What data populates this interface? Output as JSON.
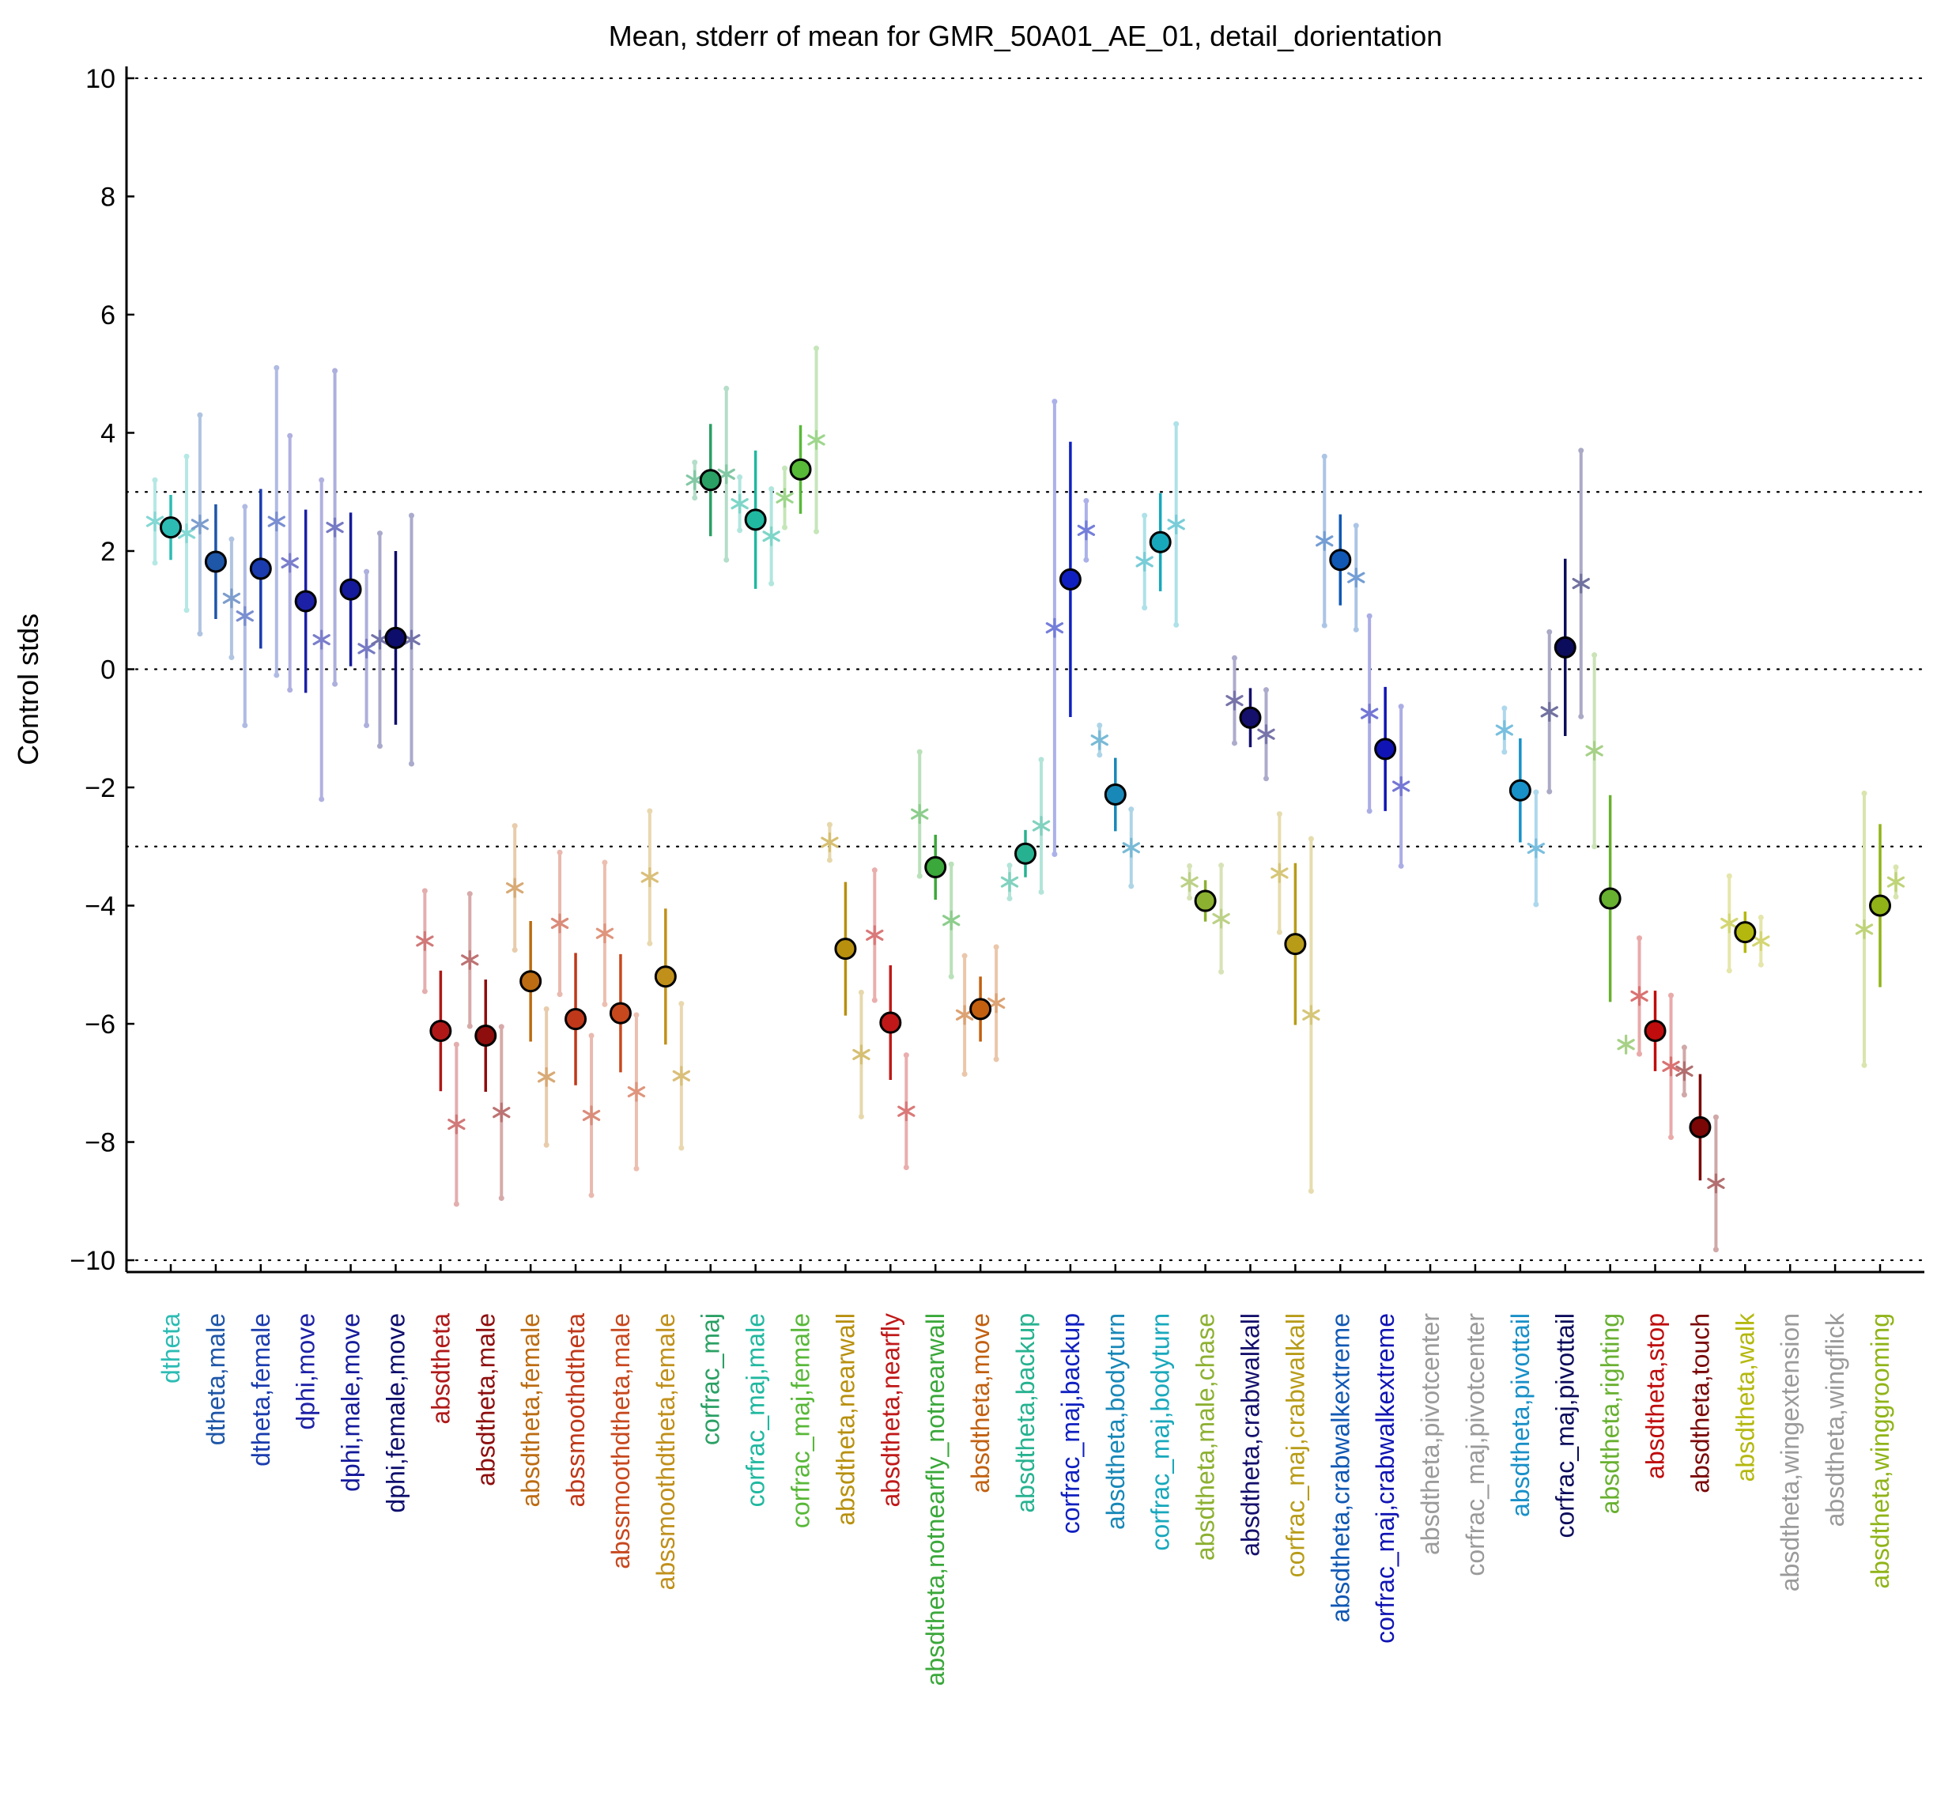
{
  "chart_data": {
    "type": "scatter",
    "title": "Mean, stderr of mean for GMR_50A01_AE_01, detail_dorientation",
    "xlabel": "",
    "ylabel": "Control stds",
    "ylim": [
      -10.2,
      10.2
    ],
    "yticks": [
      -10,
      -8,
      -6,
      -4,
      -2,
      0,
      2,
      4,
      6,
      8,
      10
    ],
    "ytick_labels": [
      "−10",
      "−8",
      "−6",
      "−4",
      "−2",
      "0",
      "2",
      "4",
      "6",
      "8",
      "10"
    ],
    "reference_lines": [
      10,
      3,
      0,
      -3,
      -10
    ],
    "grid": false,
    "legend": "none",
    "series_legend": [
      "mean (circle) with stderr bar",
      "male (asterisk, left)",
      "female (asterisk, right)"
    ],
    "categories": [
      {
        "label": "dtheta",
        "color": "#2cbcb4",
        "mean": 2.4,
        "se": 0.55,
        "male": 2.5,
        "male_se": 0.7,
        "female": 2.3,
        "female_se": 1.3
      },
      {
        "label": "dtheta,male",
        "color": "#1e56a8",
        "mean": 1.82,
        "se": 0.97,
        "male": 2.45,
        "male_se": 1.85,
        "female": 1.2,
        "female_se": 1.0
      },
      {
        "label": "dtheta,female",
        "color": "#1a3caf",
        "mean": 1.7,
        "se": 1.35,
        "male": 0.9,
        "male_se": 1.85,
        "female": 2.5,
        "female_se": 2.6
      },
      {
        "label": "dphi,move",
        "color": "#1c20a6",
        "mean": 1.15,
        "se": 1.55,
        "male": 1.8,
        "male_se": 2.15,
        "female": 0.5,
        "female_se": 2.7
      },
      {
        "label": "dphi,male,move",
        "color": "#141a9a",
        "mean": 1.35,
        "se": 1.3,
        "male": 2.4,
        "male_se": 2.65,
        "female": 0.35,
        "female_se": 1.3
      },
      {
        "label": "dphi,female,move",
        "color": "#0d0d6c",
        "mean": 0.53,
        "se": 1.47,
        "male": 0.5,
        "male_se": 1.8,
        "female": 0.5,
        "female_se": 2.1
      },
      {
        "label": "absdtheta",
        "color": "#b01818",
        "mean": -6.12,
        "se": 1.02,
        "male": -4.6,
        "male_se": 0.85,
        "female": -7.7,
        "female_se": 1.35
      },
      {
        "label": "absdtheta,male",
        "color": "#8e0d0d",
        "mean": -6.2,
        "se": 0.95,
        "male": -4.92,
        "male_se": 1.12,
        "female": -7.5,
        "female_se": 1.45
      },
      {
        "label": "absdtheta,female",
        "color": "#bc6c12",
        "mean": -5.28,
        "se": 1.02,
        "male": -3.7,
        "male_se": 1.05,
        "female": -6.9,
        "female_se": 1.15
      },
      {
        "label": "abssmoothdtheta",
        "color": "#c0381a",
        "mean": -5.92,
        "se": 1.12,
        "male": -4.3,
        "male_se": 1.2,
        "female": -7.55,
        "female_se": 1.35
      },
      {
        "label": "abssmoothdtheta,male",
        "color": "#c8481e",
        "mean": -5.82,
        "se": 1.0,
        "male": -4.47,
        "male_se": 1.2,
        "female": -7.15,
        "female_se": 1.3
      },
      {
        "label": "abssmoothdtheta,female",
        "color": "#c0901a",
        "mean": -5.2,
        "se": 1.15,
        "male": -3.52,
        "male_se": 1.12,
        "female": -6.88,
        "female_se": 1.22
      },
      {
        "label": "corfrac_maj",
        "color": "#2aa064",
        "mean": 3.2,
        "se": 0.95,
        "male": 3.2,
        "male_se": 0.3,
        "female": 3.3,
        "female_se": 1.45
      },
      {
        "label": "corfrac_maj,male",
        "color": "#20b8a0",
        "mean": 2.53,
        "se": 1.17,
        "male": 2.8,
        "male_se": 0.45,
        "female": 2.25,
        "female_se": 0.8
      },
      {
        "label": "corfrac_maj,female",
        "color": "#58b838",
        "mean": 3.38,
        "se": 0.75,
        "male": 2.9,
        "male_se": 0.5,
        "female": 3.88,
        "female_se": 1.55
      },
      {
        "label": "absdtheta,nearwall",
        "color": "#b8900e",
        "mean": -4.73,
        "se": 1.13,
        "male": -2.93,
        "male_se": 0.3,
        "female": -6.52,
        "female_se": 1.05
      },
      {
        "label": "absdtheta,nearfly",
        "color": "#c01818",
        "mean": -5.98,
        "se": 0.97,
        "male": -4.5,
        "male_se": 1.1,
        "female": -7.48,
        "female_se": 0.95
      },
      {
        "label": "absdtheta,notnearfly_notnearwall",
        "color": "#3aa83a",
        "mean": -3.35,
        "se": 0.55,
        "male": -2.45,
        "male_se": 1.05,
        "female": -4.25,
        "female_se": 0.95
      },
      {
        "label": "absdtheta,move",
        "color": "#c26010",
        "mean": -5.75,
        "se": 0.55,
        "male": -5.85,
        "male_se": 1.0,
        "female": -5.65,
        "female_se": 0.95
      },
      {
        "label": "absdtheta,backup",
        "color": "#26b290",
        "mean": -3.12,
        "se": 0.4,
        "male": -3.6,
        "male_se": 0.28,
        "female": -2.65,
        "female_se": 1.12
      },
      {
        "label": "corfrac_maj,backup",
        "color": "#1020c0",
        "mean": 1.52,
        "se": 2.33,
        "male": 0.7,
        "male_se": 3.83,
        "female": 2.35,
        "female_se": 0.5
      },
      {
        "label": "absdtheta,bodyturn",
        "color": "#1888b8",
        "mean": -2.12,
        "se": 0.62,
        "male": -1.2,
        "male_se": 0.25,
        "female": -3.02,
        "female_se": 0.65
      },
      {
        "label": "corfrac_maj,bodyturn",
        "color": "#18a8bc",
        "mean": 2.15,
        "se": 0.83,
        "male": 1.82,
        "male_se": 0.78,
        "female": 2.45,
        "female_se": 1.7
      },
      {
        "label": "absdtheta,male,chase",
        "color": "#8cb030",
        "mean": -3.92,
        "se": 0.35,
        "male": -3.6,
        "male_se": 0.27,
        "female": -4.22,
        "female_se": 0.9
      },
      {
        "label": "absdtheta,crabwalkall",
        "color": "#14106c",
        "mean": -0.82,
        "se": 0.5,
        "male": -0.53,
        "male_se": 0.72,
        "female": -1.1,
        "female_se": 0.75
      },
      {
        "label": "corfrac_maj,crabwalkall",
        "color": "#b89c18",
        "mean": -4.65,
        "se": 1.37,
        "male": -3.45,
        "male_se": 1.0,
        "female": -5.85,
        "female_se": 2.98
      },
      {
        "label": "absdtheta,crabwalkextreme",
        "color": "#1058b4",
        "mean": 1.85,
        "se": 0.77,
        "male": 2.17,
        "male_se": 1.43,
        "female": 1.55,
        "female_se": 0.88
      },
      {
        "label": "corfrac_maj,crabwalkextreme",
        "color": "#1014b4",
        "mean": -1.35,
        "se": 1.05,
        "male": -0.75,
        "male_se": 1.65,
        "female": -1.98,
        "female_se": 1.35
      },
      {
        "label": "absdtheta,pivotcenter",
        "color": "#9a9a9a"
      },
      {
        "label": "corfrac_maj,pivotcenter",
        "color": "#9a9a9a"
      },
      {
        "label": "absdtheta,pivottail",
        "color": "#1890c8",
        "mean": -2.05,
        "se": 0.88,
        "male": -1.03,
        "male_se": 0.37,
        "female": -3.03,
        "female_se": 0.95
      },
      {
        "label": "corfrac_maj,pivottail",
        "color": "#0c0c5c",
        "mean": 0.37,
        "se": 1.5,
        "male": -0.72,
        "male_se": 1.35,
        "female": 1.45,
        "female_se": 2.25
      },
      {
        "label": "absdtheta,righting",
        "color": "#68b030",
        "mean": -3.88,
        "se": 1.75,
        "male": -1.38,
        "male_se": 1.62,
        "female": -6.35,
        "female_se": 0.0
      },
      {
        "label": "absdtheta,stop",
        "color": "#c00c0c",
        "mean": -6.12,
        "se": 0.68,
        "male": -5.53,
        "male_se": 0.98,
        "female": -6.72,
        "female_se": 1.2
      },
      {
        "label": "absdtheta,touch",
        "color": "#7a0606",
        "mean": -7.75,
        "se": 0.9,
        "male": -6.8,
        "male_se": 0.4,
        "female": -8.7,
        "female_se": 1.12
      },
      {
        "label": "absdtheta,walk",
        "color": "#b4b80e",
        "mean": -4.45,
        "se": 0.35,
        "male": -4.3,
        "male_se": 0.8,
        "female": -4.6,
        "female_se": 0.4
      },
      {
        "label": "absdtheta,wingextension",
        "color": "#9a9a9a"
      },
      {
        "label": "absdtheta,wingflick",
        "color": "#9a9a9a"
      },
      {
        "label": "absdtheta,winggrooming",
        "color": "#90b418",
        "mean": -4.0,
        "se": 1.38,
        "male": -4.4,
        "male_se": 2.3,
        "female": -3.6,
        "female_se": 0.25
      }
    ]
  }
}
